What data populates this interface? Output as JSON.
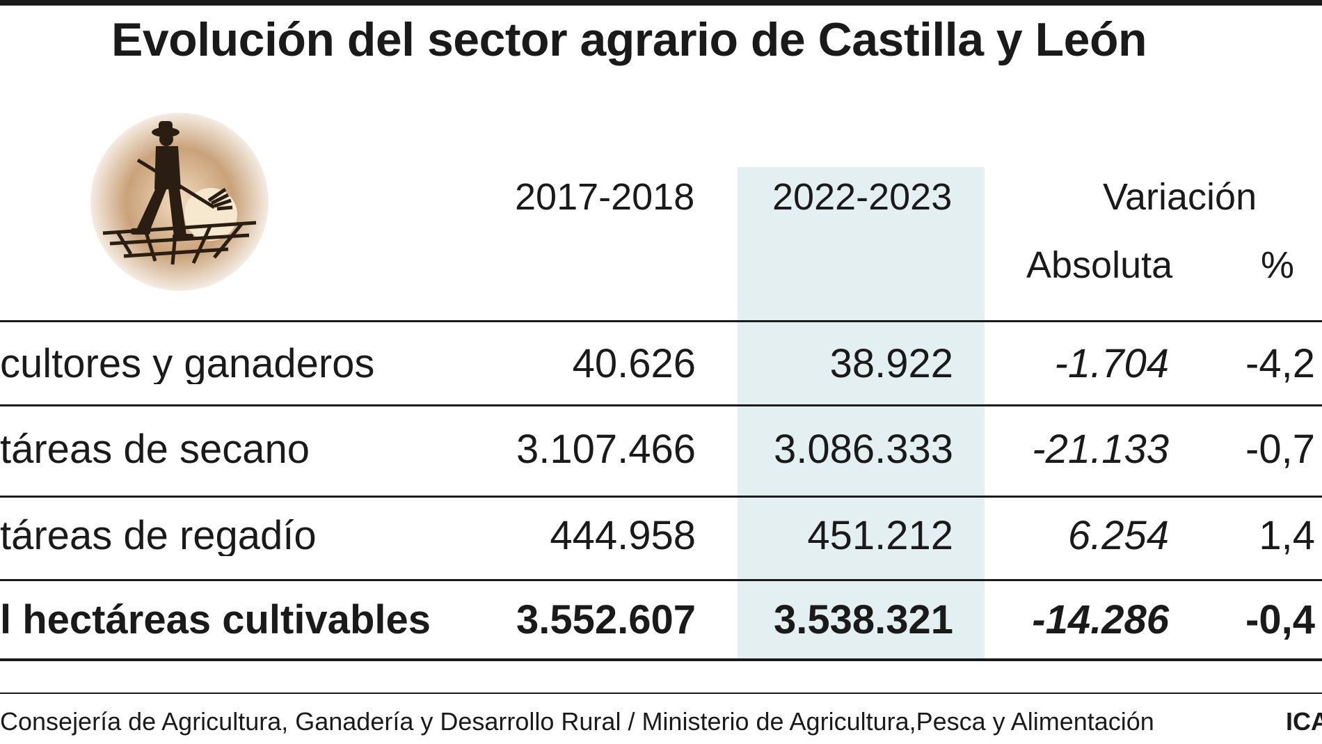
{
  "title": "Evolución del sector agrario de Castilla y León",
  "icon": "farmer-pitchfork-sunset-icon",
  "columns": {
    "y1": "2017-2018",
    "y2": "2022-2023",
    "variation": "Variación",
    "absolute": "Absoluta",
    "percent": "%"
  },
  "colors": {
    "highlight": "#e3eff0",
    "text": "#1a1a1a",
    "logo": "#c9a27a"
  },
  "rows": [
    {
      "label": "cultores y ganaderos",
      "v1": "40.626",
      "v2": "38.922",
      "abs": "-1.704",
      "pct": "-4,2"
    },
    {
      "label": "táreas de secano",
      "v1": "3.107.466",
      "v2": "3.086.333",
      "abs": "-21.133",
      "pct": "-0,7"
    },
    {
      "label": "táreas de regadío",
      "v1": "444.958",
      "v2": "451.212",
      "abs": "6.254",
      "pct": "1,4"
    }
  ],
  "total": {
    "label": "l hectáreas cultivables",
    "v1": "3.552.607",
    "v2": "3.538.321",
    "abs": "-14.286",
    "pct": "-0,4"
  },
  "source": "Consejería de Agricultura, Ganadería y Desarrollo Rural / Ministerio de Agricultura,Pesca y Alimentación",
  "credit": "ICA"
}
